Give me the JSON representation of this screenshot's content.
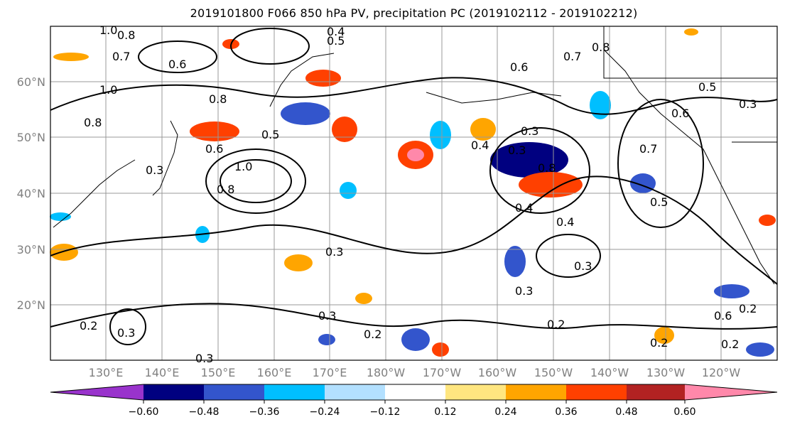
{
  "title": "2019101800 F066 850 hPa PV, precipitation PC (2019102112 - 2019102212)",
  "map": {
    "lat_labels": [
      "60°N",
      "50°N",
      "40°N",
      "30°N",
      "20°N"
    ],
    "lon_labels": [
      "130°E",
      "140°E",
      "150°E",
      "160°E",
      "170°E",
      "180°W",
      "170°W",
      "160°W",
      "150°W",
      "140°W",
      "130°W",
      "120°W"
    ],
    "contour_labels": [
      "1.0",
      "0.8",
      "0.4",
      "0.5",
      "0.7",
      "0.6",
      "1.0",
      "0.8",
      "0.6",
      "0.7",
      "0.8",
      "0.5",
      "0.3",
      "0.8",
      "0.6",
      "0.5",
      "0.3",
      "0.4",
      "0.3",
      "0.8",
      "1.0",
      "0.8",
      "0.7",
      "0.4",
      "0.4",
      "0.5",
      "0.3",
      "0.3",
      "0.3",
      "0.2",
      "0.3",
      "0.2",
      "0.3",
      "0.2",
      "0.3",
      "0.6",
      "0.2",
      "0.2",
      "0.2",
      "0.6",
      "0.3"
    ]
  },
  "colorbar": {
    "ticks": [
      "−0.60",
      "−0.48",
      "−0.36",
      "−0.24",
      "−0.12",
      "0.12",
      "0.24",
      "0.36",
      "0.48",
      "0.60"
    ],
    "colors": [
      "#9933cc",
      "#000080",
      "#3355cc",
      "#00bfff",
      "#b3e0ff",
      "#ffffff",
      "#ffe680",
      "#ffa500",
      "#ff4000",
      "#b22222",
      "#ff88aa"
    ]
  }
}
